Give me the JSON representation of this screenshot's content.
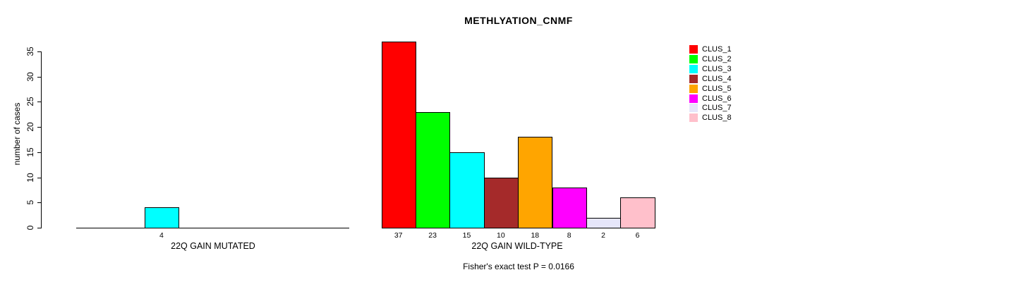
{
  "window": {
    "background_color": "#FFFFFF",
    "text_color": "#000000"
  },
  "chart_data": {
    "type": "bar",
    "title": "METHLYATION_CNMF",
    "ylabel": "number of cases",
    "xlabel": "",
    "ylim": [
      0,
      35
    ],
    "yticks": [
      0,
      5,
      10,
      15,
      20,
      25,
      30,
      35
    ],
    "grid": false,
    "legend_position": "top-right",
    "categories": [
      "CLUS_1",
      "CLUS_2",
      "CLUS_3",
      "CLUS_4",
      "CLUS_5",
      "CLUS_6",
      "CLUS_7",
      "CLUS_8"
    ],
    "colors": [
      "#FF0000",
      "#00FF00",
      "#00FFFF",
      "#A52A2A",
      "#FFA500",
      "#FF00FF",
      "#E6E6FA",
      "#FFC0CB"
    ],
    "groups": [
      {
        "label": "22Q GAIN MUTATED",
        "values": [
          0,
          0,
          4,
          0,
          0,
          0,
          0,
          0
        ],
        "bar_labels": [
          "",
          "",
          "4",
          "",
          "",
          "",
          "",
          ""
        ]
      },
      {
        "label": "22Q GAIN WILD-TYPE",
        "values": [
          37,
          23,
          15,
          10,
          18,
          8,
          2,
          6
        ],
        "bar_labels": [
          "37",
          "23",
          "15",
          "10",
          "18",
          "8",
          "2",
          "6"
        ]
      }
    ],
    "annotation": "Fisher's exact test P = 0.0166"
  }
}
